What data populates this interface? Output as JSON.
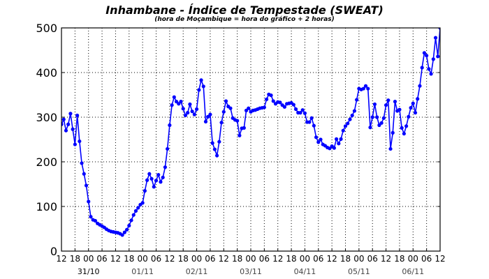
{
  "chart_data": {
    "type": "line",
    "title": "Inhambane - Índice de Tempestade (SWEAT)",
    "subtitle": "(hora de Moçambique = hora do gráfico + 2 horas)",
    "xlabel": "",
    "ylabel": "",
    "ylim": [
      0,
      500
    ],
    "yticks": [
      "0",
      "100",
      "200",
      "300",
      "400",
      "500"
    ],
    "x_start": "31/10 12h",
    "x_end": "07/11 12h",
    "step_hours": 1,
    "xtick_labels": [
      "12",
      "18",
      "00",
      "06",
      "12",
      "18",
      "00",
      "06",
      "12",
      "18",
      "00",
      "06",
      "12",
      "18",
      "00",
      "06",
      "12",
      "18",
      "00",
      "06",
      "12",
      "18",
      "00",
      "06",
      "12",
      "18",
      "00",
      "06",
      "12"
    ],
    "date_labels": [
      "31/10",
      "01/11",
      "02/11",
      "03/11",
      "04/11",
      "05/11",
      "06/11"
    ],
    "grid": true,
    "line_color": "#0000ff",
    "series": [
      {
        "values": [
          284,
          295,
          270,
          284,
          308,
          273,
          239,
          304,
          246,
          197,
          173,
          147,
          111,
          77,
          70,
          68,
          62,
          59,
          56,
          53,
          49,
          46,
          44,
          43,
          42,
          41,
          39,
          36,
          42,
          48,
          57,
          69,
          81,
          90,
          97,
          104,
          108,
          135,
          159,
          173,
          162,
          144,
          158,
          171,
          155,
          165,
          188,
          229,
          282,
          327,
          345,
          335,
          330,
          335,
          319,
          304,
          310,
          329,
          313,
          306,
          318,
          361,
          383,
          369,
          290,
          301,
          306,
          242,
          228,
          214,
          245,
          288,
          312,
          336,
          324,
          320,
          298,
          294,
          292,
          259,
          275,
          276,
          315,
          320,
          312,
          315,
          316,
          318,
          320,
          321,
          322,
          340,
          351,
          349,
          336,
          330,
          334,
          333,
          327,
          323,
          330,
          331,
          332,
          328,
          318,
          310,
          310,
          316,
          309,
          289,
          289,
          298,
          281,
          255,
          244,
          250,
          239,
          236,
          232,
          230,
          235,
          231,
          251,
          241,
          251,
          270,
          280,
          286,
          295,
          304,
          314,
          339,
          364,
          362,
          364,
          370,
          364,
          277,
          300,
          329,
          300,
          282,
          287,
          298,
          327,
          338,
          229,
          265,
          335,
          314,
          317,
          276,
          263,
          280,
          301,
          321,
          331,
          310,
          341,
          370,
          411,
          444,
          438,
          408,
          397,
          430,
          478,
          436,
          500
        ]
      }
    ]
  }
}
